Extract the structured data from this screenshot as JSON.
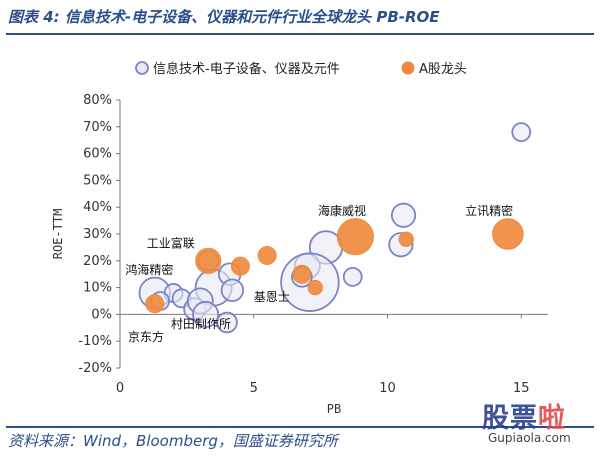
{
  "page": {
    "title": "图表 4:  信息技术-电子设备、仪器和元件行业全球龙头 PB-ROE",
    "source": "资料来源：Wind，Bloomberg，国盛证券研究所"
  },
  "watermark": {
    "cn_prefix": "股票",
    "cn_suffix": "啦",
    "en": "Gupiaola.com"
  },
  "chart_data": {
    "type": "scatter",
    "xlabel": "PB",
    "ylabel": "ROE-TTM",
    "xlim": [
      0,
      16
    ],
    "ylim": [
      -0.2,
      0.8
    ],
    "xticks": [
      0,
      5,
      10,
      15
    ],
    "xtick_labels": [
      "0",
      "5",
      "10",
      "15"
    ],
    "yticks": [
      -0.2,
      -0.1,
      0,
      0.1,
      0.2,
      0.3,
      0.4,
      0.5,
      0.6,
      0.7,
      0.8
    ],
    "ytick_labels": [
      "-20%",
      "-10%",
      "0%",
      "10%",
      "20%",
      "30%",
      "40%",
      "50%",
      "60%",
      "70%",
      "80%"
    ],
    "grid": false,
    "legend_position": "top",
    "colors": {
      "global": "#7b84c9",
      "global_fill": "#e8e9f4",
      "a_share": "#ee8a3e"
    },
    "series": [
      {
        "name": "信息技术-电子设备、仪器及元件",
        "style": "hollow",
        "points": [
          {
            "x": 15.0,
            "y": 0.68,
            "size": 1.0
          },
          {
            "x": 10.6,
            "y": 0.37,
            "size": 1.3
          },
          {
            "x": 10.5,
            "y": 0.26,
            "size": 1.3
          },
          {
            "x": 7.7,
            "y": 0.25,
            "size": 1.8
          },
          {
            "x": 8.7,
            "y": 0.14,
            "size": 1.0
          },
          {
            "x": 7.0,
            "y": 0.18,
            "size": 1.4
          },
          {
            "x": 7.1,
            "y": 0.12,
            "size": 3.2
          },
          {
            "x": 6.8,
            "y": 0.14,
            "size": 1.1
          },
          {
            "x": 3.3,
            "y": 0.2,
            "size": 1.1
          },
          {
            "x": 3.5,
            "y": 0.1,
            "size": 2.0
          },
          {
            "x": 4.1,
            "y": 0.15,
            "size": 1.2
          },
          {
            "x": 4.2,
            "y": 0.09,
            "size": 1.2
          },
          {
            "x": 1.3,
            "y": 0.08,
            "size": 1.7
          },
          {
            "x": 2.0,
            "y": 0.08,
            "size": 1.0
          },
          {
            "x": 2.3,
            "y": 0.06,
            "size": 1.0
          },
          {
            "x": 1.5,
            "y": 0.05,
            "size": 1.0
          },
          {
            "x": 2.8,
            "y": 0.02,
            "size": 1.2
          },
          {
            "x": 3.0,
            "y": 0.05,
            "size": 1.4
          },
          {
            "x": 3.2,
            "y": 0.0,
            "size": 1.4
          },
          {
            "x": 4.0,
            "y": -0.03,
            "size": 1.1
          }
        ]
      },
      {
        "name": "A股龙头",
        "style": "filled",
        "points": [
          {
            "x": 14.5,
            "y": 0.3,
            "size": 1.7
          },
          {
            "x": 8.8,
            "y": 0.29,
            "size": 2.0
          },
          {
            "x": 10.7,
            "y": 0.28,
            "size": 0.8
          },
          {
            "x": 5.5,
            "y": 0.22,
            "size": 1.0
          },
          {
            "x": 4.5,
            "y": 0.18,
            "size": 1.0
          },
          {
            "x": 3.3,
            "y": 0.2,
            "size": 1.4
          },
          {
            "x": 6.8,
            "y": 0.15,
            "size": 1.0
          },
          {
            "x": 7.3,
            "y": 0.1,
            "size": 0.8
          },
          {
            "x": 1.3,
            "y": 0.04,
            "size": 1.0
          }
        ]
      }
    ],
    "annotations": [
      {
        "text": "海康威视",
        "x": 7.4,
        "y": 0.37
      },
      {
        "text": "立讯精密",
        "x": 12.9,
        "y": 0.37
      },
      {
        "text": "工业富联",
        "x": 1.0,
        "y": 0.25
      },
      {
        "text": "鸿海精密",
        "x": 0.2,
        "y": 0.15
      },
      {
        "text": "基恩士",
        "x": 5.0,
        "y": 0.05
      },
      {
        "text": "村田制作所",
        "x": 1.9,
        "y": -0.05
      },
      {
        "text": "京东方",
        "x": 0.3,
        "y": -0.1
      }
    ]
  }
}
